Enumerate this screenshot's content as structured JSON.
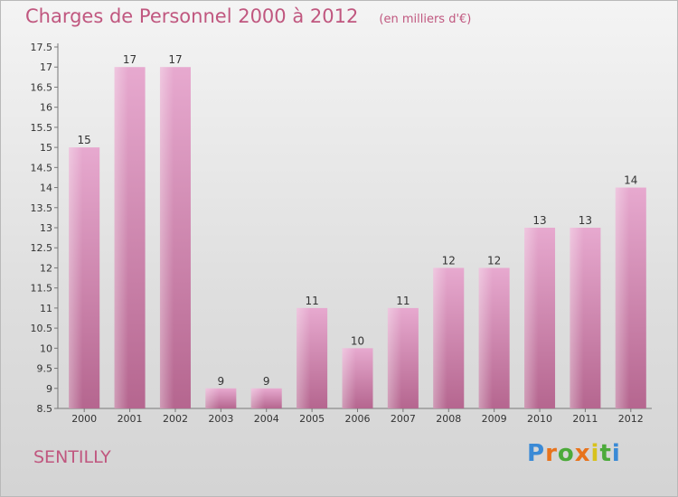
{
  "header": {
    "title": "Charges de Personnel 2000 à 2012",
    "subtitle": "(en milliers d'€)"
  },
  "footer": {
    "commune": "SENTILLY",
    "logo_text": "Proxiti"
  },
  "colors": {
    "title": "#c0577f",
    "bar_light": "#e7a9cf",
    "bar_dark": "#b5668f",
    "logo": [
      "#3a8ad6",
      "#e8731c",
      "#4caa3a",
      "#e8731c",
      "#d8c21c",
      "#4caa3a",
      "#3a8ad6"
    ]
  },
  "chart_data": {
    "type": "bar",
    "title": "Charges de Personnel 2000 à 2012",
    "subtitle": "(en milliers d'€)",
    "categories": [
      "2000",
      "2001",
      "2002",
      "2003",
      "2004",
      "2005",
      "2006",
      "2007",
      "2008",
      "2009",
      "2010",
      "2011",
      "2012"
    ],
    "values": [
      15,
      17,
      17,
      9,
      9,
      11,
      10,
      11,
      12,
      12,
      13,
      13,
      14
    ],
    "ylim": [
      8.5,
      17.5
    ],
    "yticks": [
      8.5,
      9,
      9.5,
      10,
      10.5,
      11,
      11.5,
      12,
      12.5,
      13,
      13.5,
      14,
      14.5,
      15,
      15.5,
      16,
      16.5,
      17,
      17.5
    ],
    "grid": false
  }
}
